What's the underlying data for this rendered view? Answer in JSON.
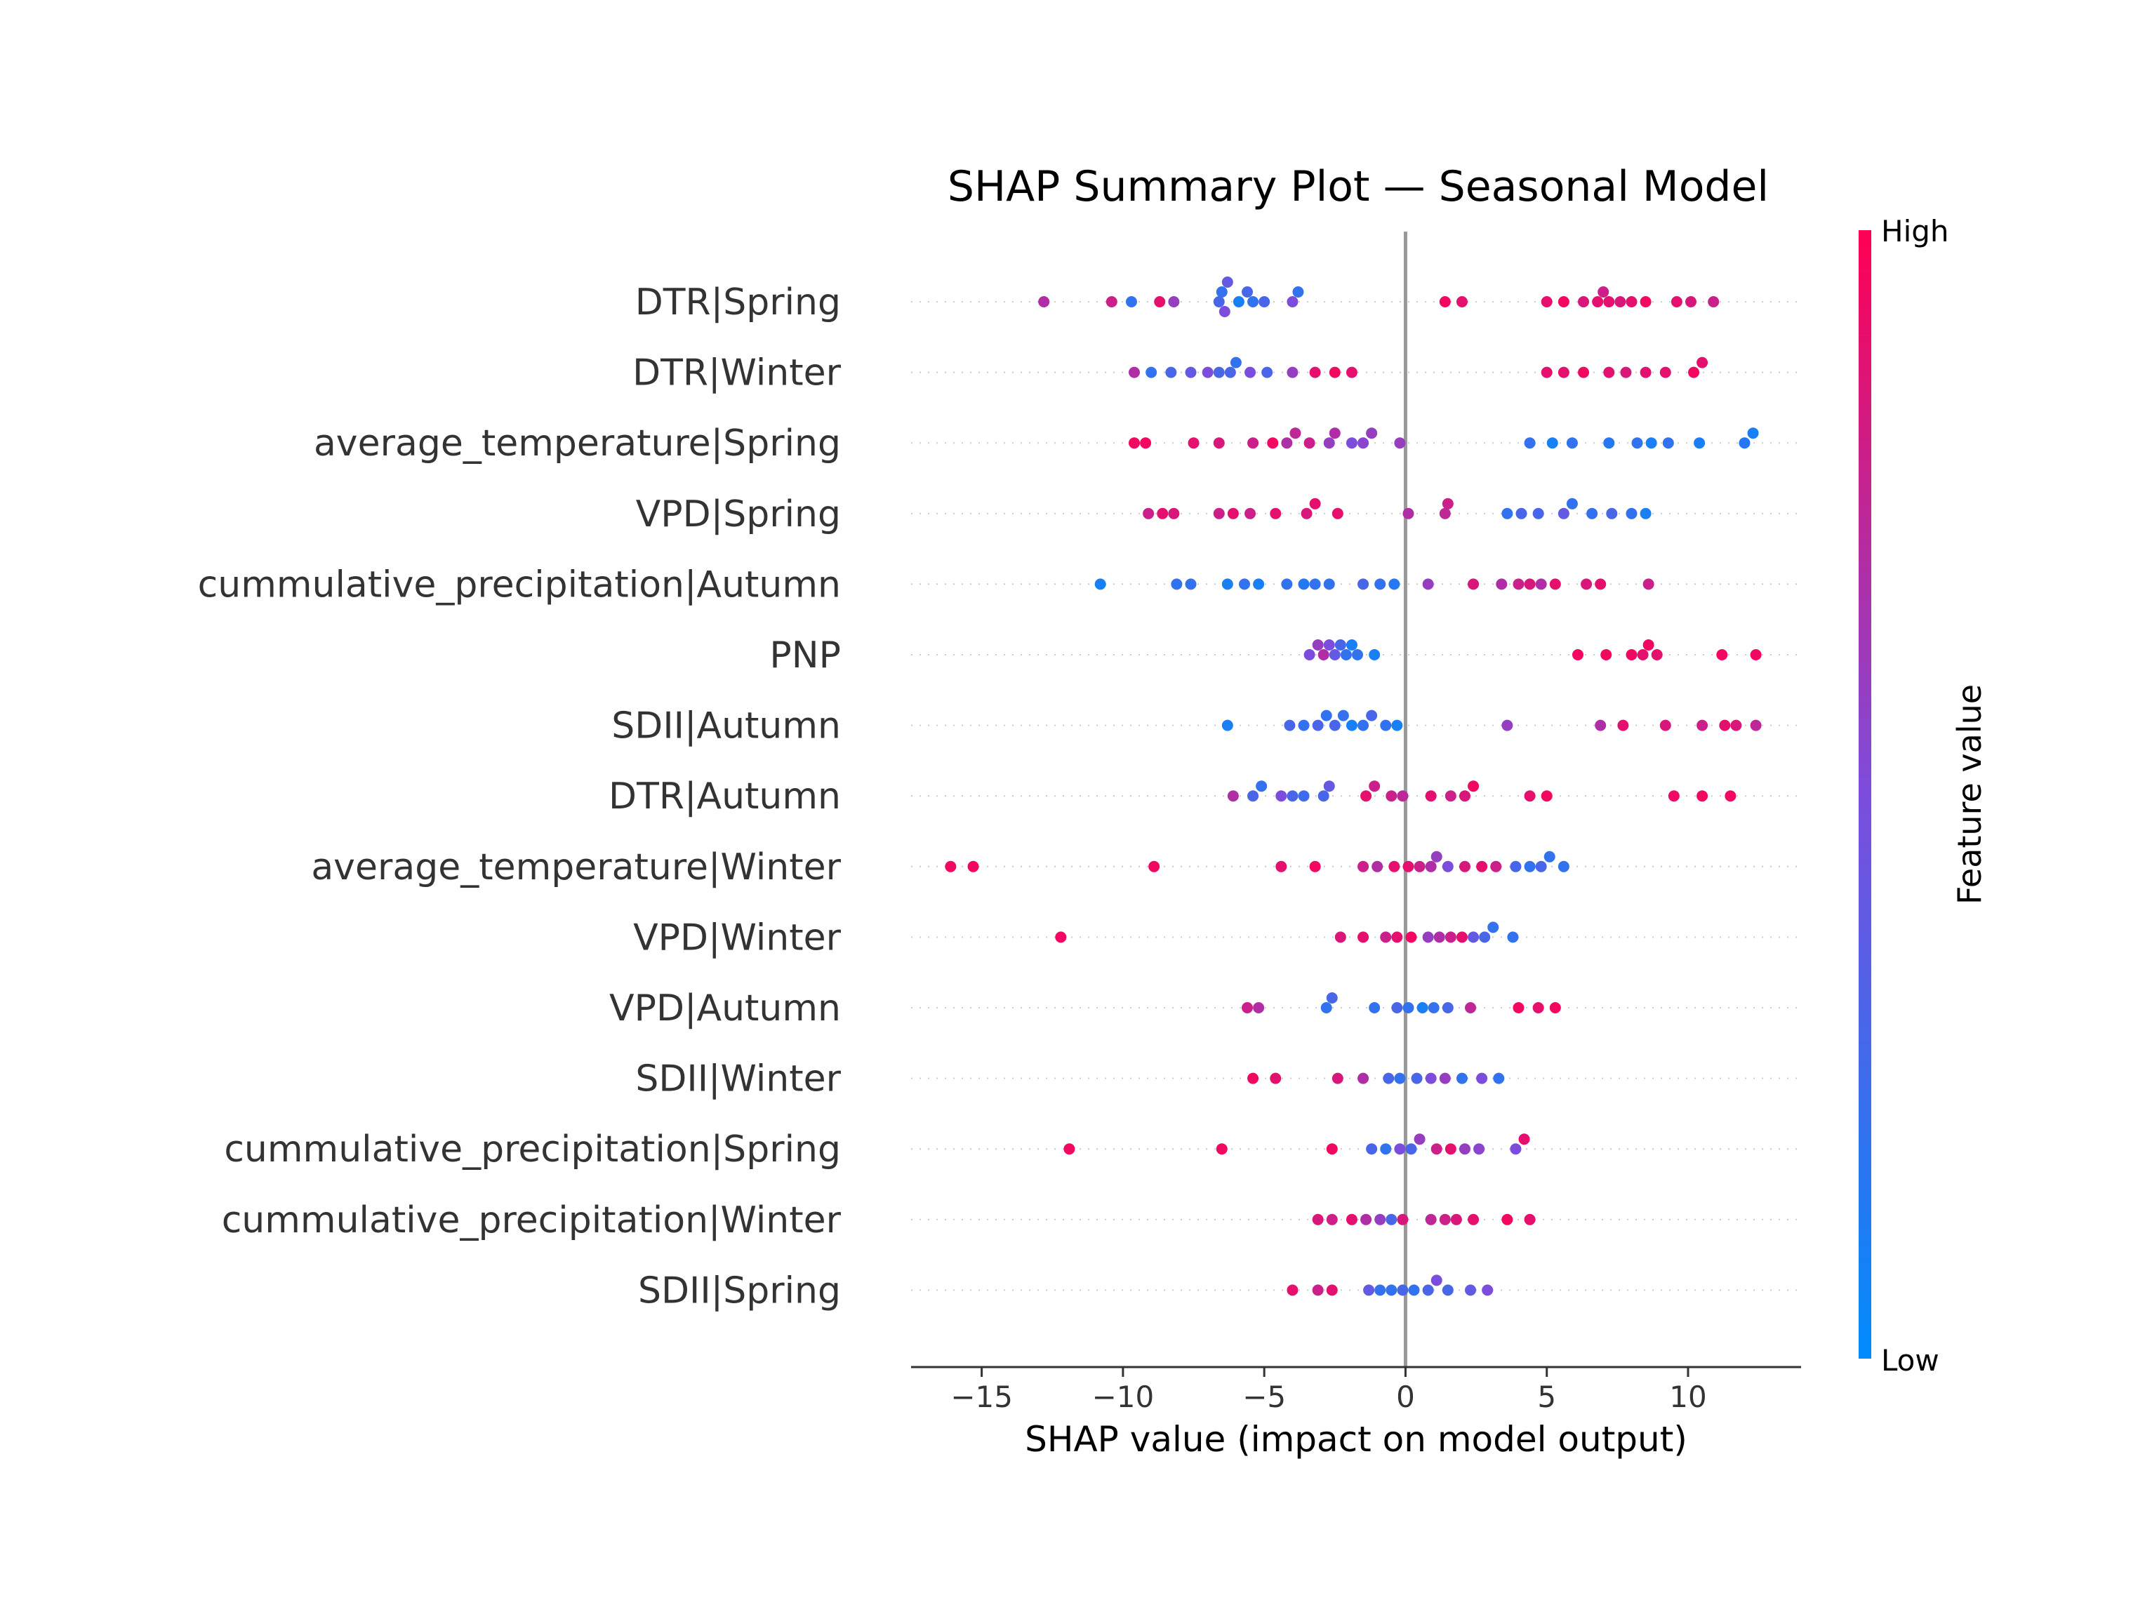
{
  "chart_data": {
    "type": "scatter",
    "title": "SHAP Summary Plot — Seasonal Model",
    "xlabel": "SHAP value (impact on model output)",
    "xlim": [
      -17.5,
      14
    ],
    "xticks": [
      {
        "value": -15,
        "label": "−15"
      },
      {
        "value": -10,
        "label": "−10"
      },
      {
        "value": -5,
        "label": "−5"
      },
      {
        "value": 0,
        "label": "0"
      },
      {
        "value": 5,
        "label": "5"
      },
      {
        "value": 10,
        "label": "10"
      }
    ],
    "colorbar": {
      "label": "Feature value",
      "high_label": "High",
      "low_label": "Low",
      "low_color": "#008bfb",
      "high_color": "#ff0052"
    },
    "zero_line_color": "#999999",
    "features": [
      {
        "name": "DTR|Spring",
        "points": [
          [
            -12.8,
            0.7
          ],
          [
            -10.4,
            0.8
          ],
          [
            -9.7,
            0.2
          ],
          [
            -8.7,
            0.9
          ],
          [
            -8.2,
            0.6
          ],
          [
            -6.6,
            0.3
          ],
          [
            -6.5,
            0.2
          ],
          [
            -6.4,
            0.5
          ],
          [
            -6.3,
            0.4
          ],
          [
            -5.9,
            0.1
          ],
          [
            -5.6,
            0.3
          ],
          [
            -5.4,
            0.2
          ],
          [
            -5.0,
            0.3
          ],
          [
            -4.0,
            0.5
          ],
          [
            -3.8,
            0.2
          ],
          [
            1.4,
            0.95
          ],
          [
            2.0,
            0.9
          ],
          [
            5.0,
            0.9
          ],
          [
            5.6,
            0.95
          ],
          [
            6.3,
            0.85
          ],
          [
            6.8,
            0.9
          ],
          [
            7.0,
            0.8
          ],
          [
            7.2,
            0.9
          ],
          [
            7.6,
            0.85
          ],
          [
            8.0,
            0.9
          ],
          [
            8.5,
            0.95
          ],
          [
            9.6,
            0.9
          ],
          [
            10.1,
            0.85
          ],
          [
            10.9,
            0.8
          ]
        ]
      },
      {
        "name": "DTR|Winter",
        "points": [
          [
            -9.6,
            0.7
          ],
          [
            -9.0,
            0.2
          ],
          [
            -8.3,
            0.3
          ],
          [
            -7.6,
            0.4
          ],
          [
            -7.0,
            0.5
          ],
          [
            -6.6,
            0.3
          ],
          [
            -6.2,
            0.3
          ],
          [
            -6.0,
            0.2
          ],
          [
            -5.5,
            0.5
          ],
          [
            -4.9,
            0.3
          ],
          [
            -4.0,
            0.6
          ],
          [
            -3.2,
            0.9
          ],
          [
            -2.5,
            0.95
          ],
          [
            -1.9,
            0.9
          ],
          [
            5.0,
            0.9
          ],
          [
            5.6,
            0.9
          ],
          [
            6.3,
            0.95
          ],
          [
            7.2,
            0.9
          ],
          [
            7.8,
            0.85
          ],
          [
            8.5,
            0.9
          ],
          [
            9.2,
            0.9
          ],
          [
            10.2,
            0.95
          ],
          [
            10.5,
            0.9
          ]
        ]
      },
      {
        "name": "average_temperature|Spring",
        "points": [
          [
            -9.6,
            0.95
          ],
          [
            -9.2,
            0.95
          ],
          [
            -7.5,
            0.9
          ],
          [
            -6.6,
            0.85
          ],
          [
            -5.4,
            0.8
          ],
          [
            -4.7,
            0.95
          ],
          [
            -4.2,
            0.7
          ],
          [
            -3.9,
            0.75
          ],
          [
            -3.4,
            0.8
          ],
          [
            -2.7,
            0.6
          ],
          [
            -2.5,
            0.7
          ],
          [
            -1.9,
            0.5
          ],
          [
            -1.5,
            0.55
          ],
          [
            -1.2,
            0.6
          ],
          [
            -0.2,
            0.6
          ],
          [
            4.4,
            0.2
          ],
          [
            5.2,
            0.1
          ],
          [
            5.9,
            0.2
          ],
          [
            7.2,
            0.15
          ],
          [
            8.2,
            0.2
          ],
          [
            8.7,
            0.1
          ],
          [
            9.3,
            0.2
          ],
          [
            10.4,
            0.1
          ],
          [
            12.0,
            0.15
          ],
          [
            12.3,
            0.1
          ]
        ]
      },
      {
        "name": "VPD|Spring",
        "points": [
          [
            -9.1,
            0.8
          ],
          [
            -8.6,
            0.9
          ],
          [
            -8.2,
            0.85
          ],
          [
            -6.6,
            0.8
          ],
          [
            -6.1,
            0.9
          ],
          [
            -5.5,
            0.8
          ],
          [
            -4.6,
            0.9
          ],
          [
            -3.5,
            0.85
          ],
          [
            -3.2,
            0.9
          ],
          [
            -2.4,
            0.9
          ],
          [
            0.1,
            0.7
          ],
          [
            1.4,
            0.75
          ],
          [
            1.5,
            0.8
          ],
          [
            3.6,
            0.2
          ],
          [
            4.1,
            0.3
          ],
          [
            4.7,
            0.3
          ],
          [
            5.6,
            0.4
          ],
          [
            5.9,
            0.2
          ],
          [
            6.6,
            0.2
          ],
          [
            7.3,
            0.3
          ],
          [
            8.0,
            0.2
          ],
          [
            8.5,
            0.1
          ]
        ]
      },
      {
        "name": "cummulative_precipitation|Autumn",
        "points": [
          [
            -10.8,
            0.1
          ],
          [
            -8.1,
            0.2
          ],
          [
            -7.6,
            0.2
          ],
          [
            -6.3,
            0.1
          ],
          [
            -5.7,
            0.2
          ],
          [
            -5.2,
            0.1
          ],
          [
            -4.2,
            0.2
          ],
          [
            -3.6,
            0.15
          ],
          [
            -3.2,
            0.2
          ],
          [
            -2.7,
            0.2
          ],
          [
            -1.5,
            0.3
          ],
          [
            -0.9,
            0.2
          ],
          [
            -0.4,
            0.15
          ],
          [
            0.8,
            0.6
          ],
          [
            2.4,
            0.85
          ],
          [
            3.4,
            0.7
          ],
          [
            4.0,
            0.8
          ],
          [
            4.4,
            0.85
          ],
          [
            4.8,
            0.7
          ],
          [
            5.3,
            0.9
          ],
          [
            6.4,
            0.85
          ],
          [
            6.9,
            0.9
          ],
          [
            8.6,
            0.8
          ]
        ]
      },
      {
        "name": "PNP",
        "points": [
          [
            -3.4,
            0.5
          ],
          [
            -3.1,
            0.6
          ],
          [
            -2.9,
            0.7
          ],
          [
            -2.7,
            0.5
          ],
          [
            -2.5,
            0.4
          ],
          [
            -2.3,
            0.3
          ],
          [
            -2.1,
            0.2
          ],
          [
            -1.9,
            0.1
          ],
          [
            -1.7,
            0.2
          ],
          [
            -1.1,
            0.1
          ],
          [
            6.1,
            0.95
          ],
          [
            7.1,
            0.95
          ],
          [
            8.0,
            0.95
          ],
          [
            8.4,
            0.9
          ],
          [
            8.6,
            0.95
          ],
          [
            8.9,
            0.9
          ],
          [
            11.2,
            0.95
          ],
          [
            12.4,
            0.95
          ]
        ]
      },
      {
        "name": "SDII|Autumn",
        "points": [
          [
            -6.3,
            0.1
          ],
          [
            -4.1,
            0.3
          ],
          [
            -3.6,
            0.2
          ],
          [
            -3.1,
            0.3
          ],
          [
            -2.8,
            0.2
          ],
          [
            -2.5,
            0.3
          ],
          [
            -2.2,
            0.2
          ],
          [
            -1.9,
            0.1
          ],
          [
            -1.5,
            0.2
          ],
          [
            -1.2,
            0.3
          ],
          [
            -0.7,
            0.2
          ],
          [
            -0.3,
            0.1
          ],
          [
            3.6,
            0.6
          ],
          [
            6.9,
            0.7
          ],
          [
            7.7,
            0.9
          ],
          [
            9.2,
            0.85
          ],
          [
            10.5,
            0.8
          ],
          [
            11.3,
            0.9
          ],
          [
            11.7,
            0.85
          ],
          [
            12.4,
            0.75
          ]
        ]
      },
      {
        "name": "DTR|Autumn",
        "points": [
          [
            -6.1,
            0.7
          ],
          [
            -5.4,
            0.3
          ],
          [
            -5.1,
            0.2
          ],
          [
            -4.4,
            0.5
          ],
          [
            -4.0,
            0.3
          ],
          [
            -3.6,
            0.25
          ],
          [
            -2.9,
            0.3
          ],
          [
            -2.7,
            0.4
          ],
          [
            -1.4,
            0.9
          ],
          [
            -1.1,
            0.8
          ],
          [
            -0.5,
            0.8
          ],
          [
            -0.1,
            0.75
          ],
          [
            0.9,
            0.9
          ],
          [
            1.6,
            0.8
          ],
          [
            2.1,
            0.85
          ],
          [
            2.4,
            0.95
          ],
          [
            4.4,
            0.9
          ],
          [
            5.0,
            0.95
          ],
          [
            9.5,
            0.95
          ],
          [
            10.5,
            0.95
          ],
          [
            11.5,
            0.95
          ]
        ]
      },
      {
        "name": "average_temperature|Winter",
        "points": [
          [
            -16.1,
            0.95
          ],
          [
            -15.3,
            0.95
          ],
          [
            -8.9,
            0.95
          ],
          [
            -4.4,
            0.9
          ],
          [
            -3.2,
            0.95
          ],
          [
            -1.5,
            0.8
          ],
          [
            -1.0,
            0.7
          ],
          [
            -0.4,
            0.9
          ],
          [
            0.1,
            0.9
          ],
          [
            0.5,
            0.8
          ],
          [
            0.9,
            0.7
          ],
          [
            1.1,
            0.6
          ],
          [
            1.5,
            0.5
          ],
          [
            2.1,
            0.85
          ],
          [
            2.7,
            0.9
          ],
          [
            3.2,
            0.8
          ],
          [
            3.9,
            0.3
          ],
          [
            4.4,
            0.2
          ],
          [
            4.8,
            0.3
          ],
          [
            5.1,
            0.2
          ],
          [
            5.6,
            0.2
          ]
        ]
      },
      {
        "name": "VPD|Winter",
        "points": [
          [
            -12.2,
            0.95
          ],
          [
            -2.3,
            0.85
          ],
          [
            -1.5,
            0.9
          ],
          [
            -0.7,
            0.8
          ],
          [
            -0.3,
            0.9
          ],
          [
            0.2,
            0.95
          ],
          [
            0.8,
            0.6
          ],
          [
            1.2,
            0.7
          ],
          [
            1.6,
            0.8
          ],
          [
            2.0,
            0.9
          ],
          [
            2.4,
            0.4
          ],
          [
            2.8,
            0.3
          ],
          [
            3.1,
            0.2
          ],
          [
            3.8,
            0.2
          ]
        ]
      },
      {
        "name": "VPD|Autumn",
        "points": [
          [
            -5.6,
            0.8
          ],
          [
            -5.2,
            0.7
          ],
          [
            -2.8,
            0.2
          ],
          [
            -2.6,
            0.3
          ],
          [
            -1.1,
            0.2
          ],
          [
            -0.3,
            0.3
          ],
          [
            0.1,
            0.2
          ],
          [
            0.6,
            0.1
          ],
          [
            1.0,
            0.2
          ],
          [
            1.5,
            0.3
          ],
          [
            2.3,
            0.75
          ],
          [
            4.0,
            0.95
          ],
          [
            4.7,
            0.9
          ],
          [
            5.3,
            0.95
          ]
        ]
      },
      {
        "name": "SDII|Winter",
        "points": [
          [
            -5.4,
            0.95
          ],
          [
            -4.6,
            0.9
          ],
          [
            -2.4,
            0.85
          ],
          [
            -1.5,
            0.7
          ],
          [
            -0.6,
            0.3
          ],
          [
            -0.2,
            0.2
          ],
          [
            0.4,
            0.3
          ],
          [
            0.9,
            0.5
          ],
          [
            1.4,
            0.6
          ],
          [
            2.0,
            0.2
          ],
          [
            2.7,
            0.5
          ],
          [
            3.3,
            0.2
          ]
        ]
      },
      {
        "name": "cummulative_precipitation|Spring",
        "points": [
          [
            -11.9,
            0.95
          ],
          [
            -6.5,
            0.95
          ],
          [
            -2.6,
            0.95
          ],
          [
            -1.2,
            0.3
          ],
          [
            -0.7,
            0.2
          ],
          [
            -0.2,
            0.5
          ],
          [
            0.2,
            0.3
          ],
          [
            0.5,
            0.6
          ],
          [
            1.1,
            0.8
          ],
          [
            1.6,
            0.9
          ],
          [
            2.1,
            0.6
          ],
          [
            2.6,
            0.55
          ],
          [
            3.9,
            0.5
          ],
          [
            4.2,
            0.9
          ]
        ]
      },
      {
        "name": "cummulative_precipitation|Winter",
        "points": [
          [
            -3.1,
            0.85
          ],
          [
            -2.6,
            0.8
          ],
          [
            -1.9,
            0.9
          ],
          [
            -1.4,
            0.7
          ],
          [
            -0.9,
            0.6
          ],
          [
            -0.5,
            0.3
          ],
          [
            -0.1,
            0.85
          ],
          [
            0.9,
            0.75
          ],
          [
            1.4,
            0.8
          ],
          [
            1.8,
            0.85
          ],
          [
            2.4,
            0.9
          ],
          [
            3.6,
            0.95
          ],
          [
            4.4,
            0.9
          ]
        ]
      },
      {
        "name": "SDII|Spring",
        "points": [
          [
            -4.0,
            0.9
          ],
          [
            -3.1,
            0.8
          ],
          [
            -2.6,
            0.9
          ],
          [
            -1.3,
            0.4
          ],
          [
            -0.9,
            0.2
          ],
          [
            -0.5,
            0.2
          ],
          [
            -0.1,
            0.3
          ],
          [
            0.3,
            0.2
          ],
          [
            0.8,
            0.3
          ],
          [
            1.1,
            0.5
          ],
          [
            1.5,
            0.3
          ],
          [
            2.3,
            0.4
          ],
          [
            2.9,
            0.5
          ]
        ]
      }
    ]
  }
}
